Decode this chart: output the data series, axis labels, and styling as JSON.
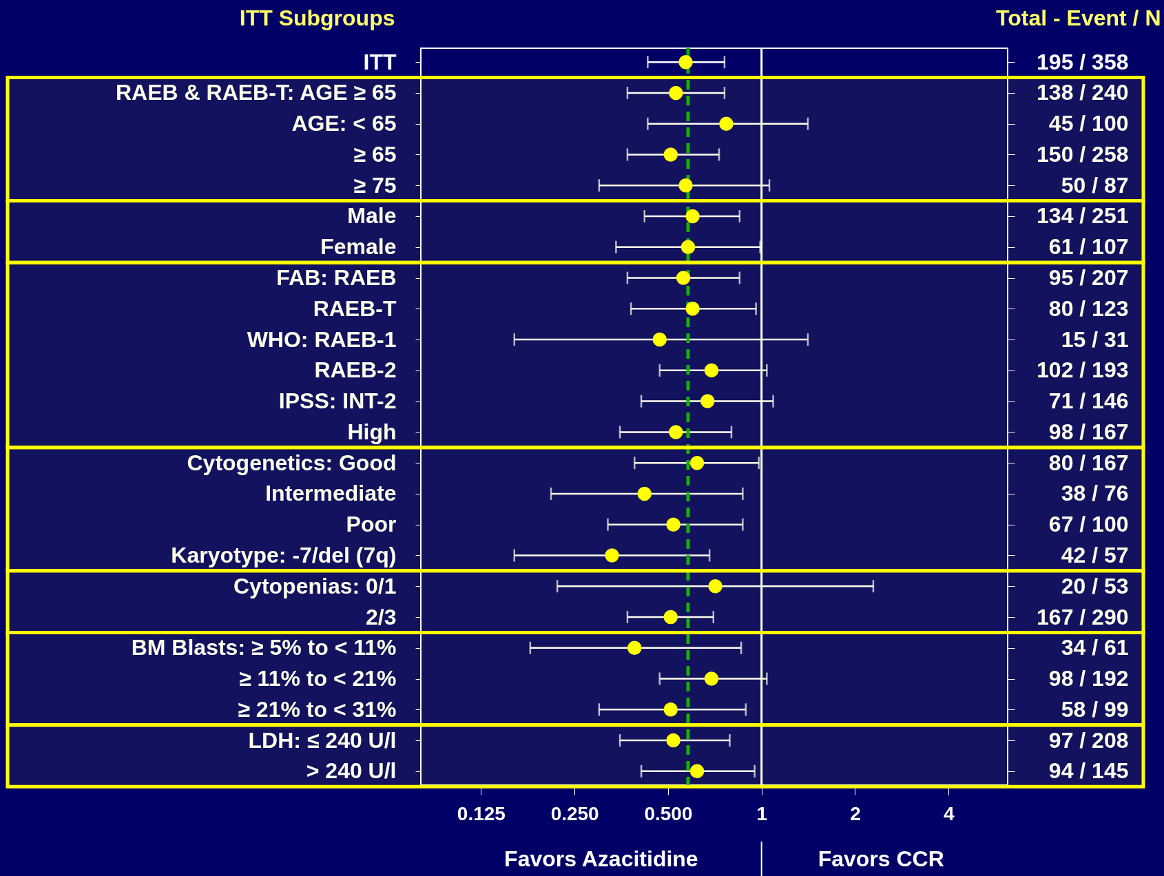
{
  "chart_data": {
    "type": "scatter",
    "orientation": "horizontal",
    "ylabel": "ITT Subgroups",
    "y2label": "Total - Event / N",
    "categories": [
      "ITT",
      "RAEB & RAEB-T: AGE ≥ 65",
      "AGE: < 65",
      "≥ 65",
      "≥ 75",
      "Male",
      "Female",
      "FAB: RAEB",
      "RAEB-T",
      "WHO: RAEB-1",
      "RAEB-2",
      "IPSS: INT-2",
      "High",
      "Cytogenetics: Good",
      "Intermediate",
      "Poor",
      "Karyotype: -7/del (7q)",
      "Cytopenias: 0/1",
      "2/3",
      "BM Blasts: ≥ 5% to < 11%",
      "≥ 11% to < 21%",
      "≥ 21% to < 31%",
      "LDH: ≤ 240 U/l",
      "> 240 U/l"
    ],
    "y2_categories": [
      "195 / 358",
      "138 / 240",
      "45 / 100",
      "150 / 258",
      "50 / 87",
      "134 / 251",
      "61 / 107",
      "95 / 207",
      "80 / 123",
      "15 / 31",
      "102 / 193",
      "71 / 146",
      "98 / 167",
      "80 / 167",
      "38 / 76",
      "67 / 100",
      "42 / 57",
      "20 / 53",
      "167 / 290",
      "34 / 61",
      "98 / 192",
      "58 / 99",
      "97 / 208",
      "94 / 145"
    ],
    "series": [
      {
        "color": "#ffff00",
        "values": [
          0.57,
          0.53,
          0.77,
          0.51,
          0.57,
          0.6,
          0.58,
          0.56,
          0.6,
          0.47,
          0.69,
          0.67,
          0.53,
          0.62,
          0.42,
          0.52,
          0.33,
          0.71,
          0.51,
          0.39,
          0.69,
          0.51,
          0.52,
          0.62
        ],
        "errors": [
          [
            0.43,
            0.76
          ],
          [
            0.37,
            0.76
          ],
          [
            0.43,
            1.41
          ],
          [
            0.37,
            0.73
          ],
          [
            0.3,
            1.06
          ],
          [
            0.42,
            0.85
          ],
          [
            0.34,
            0.99
          ],
          [
            0.37,
            0.85
          ],
          [
            0.38,
            0.96
          ],
          [
            0.16,
            1.41
          ],
          [
            0.47,
            1.04
          ],
          [
            0.41,
            1.09
          ],
          [
            0.35,
            0.8
          ],
          [
            0.39,
            0.98
          ],
          [
            0.21,
            0.87
          ],
          [
            0.32,
            0.87
          ],
          [
            0.16,
            0.68
          ],
          [
            0.22,
            2.29
          ],
          [
            0.37,
            0.7
          ],
          [
            0.18,
            0.86
          ],
          [
            0.47,
            1.04
          ],
          [
            0.3,
            0.89
          ],
          [
            0.35,
            0.79
          ],
          [
            0.41,
            0.95
          ]
        ]
      }
    ],
    "marker": "circle",
    "log": "x",
    "xlim": [
      0.08,
      6.2
    ],
    "xticks": [
      0.125,
      {
        "value": 0.25,
        "label": "0.250"
      },
      {
        "value": 0.5,
        "label": "0.500"
      },
      1,
      2,
      4
    ],
    "grid": false,
    "ref_lines": [
      {
        "axis": "x",
        "value": 1,
        "color": "#ffffff",
        "line_style": "solid"
      },
      {
        "axis": "x",
        "value": 0.58,
        "color": "#00b000",
        "line_style": "dashed"
      }
    ],
    "bands": [
      {
        "axis": "y",
        "from": "RAEB & RAEB-T: AGE ≥ 65",
        "to": "≥ 75",
        "color": "#ffff00"
      },
      {
        "axis": "y",
        "from": "Male",
        "to": "Female",
        "color": "#ffff00"
      },
      {
        "axis": "y",
        "from": "FAB: RAEB",
        "to": "High",
        "color": "#ffff00"
      },
      {
        "axis": "y",
        "from": "Cytogenetics: Good",
        "to": "Karyotype: -7/del (7q)",
        "color": "#ffff00"
      },
      {
        "axis": "y",
        "from": "Cytopenias: 0/1",
        "to": "2/3",
        "color": "#ffff00"
      },
      {
        "axis": "y",
        "from": "BM Blasts: ≥ 5% to < 11%",
        "to": "≥ 21% to < 31%",
        "color": "#ffff00"
      },
      {
        "axis": "y",
        "from": "LDH: ≤ 240 U/l",
        "to": "> 240 U/l",
        "color": "#ffff00"
      }
    ],
    "annotations": [
      "Favors Azacitidine",
      "Favors CCR"
    ]
  }
}
